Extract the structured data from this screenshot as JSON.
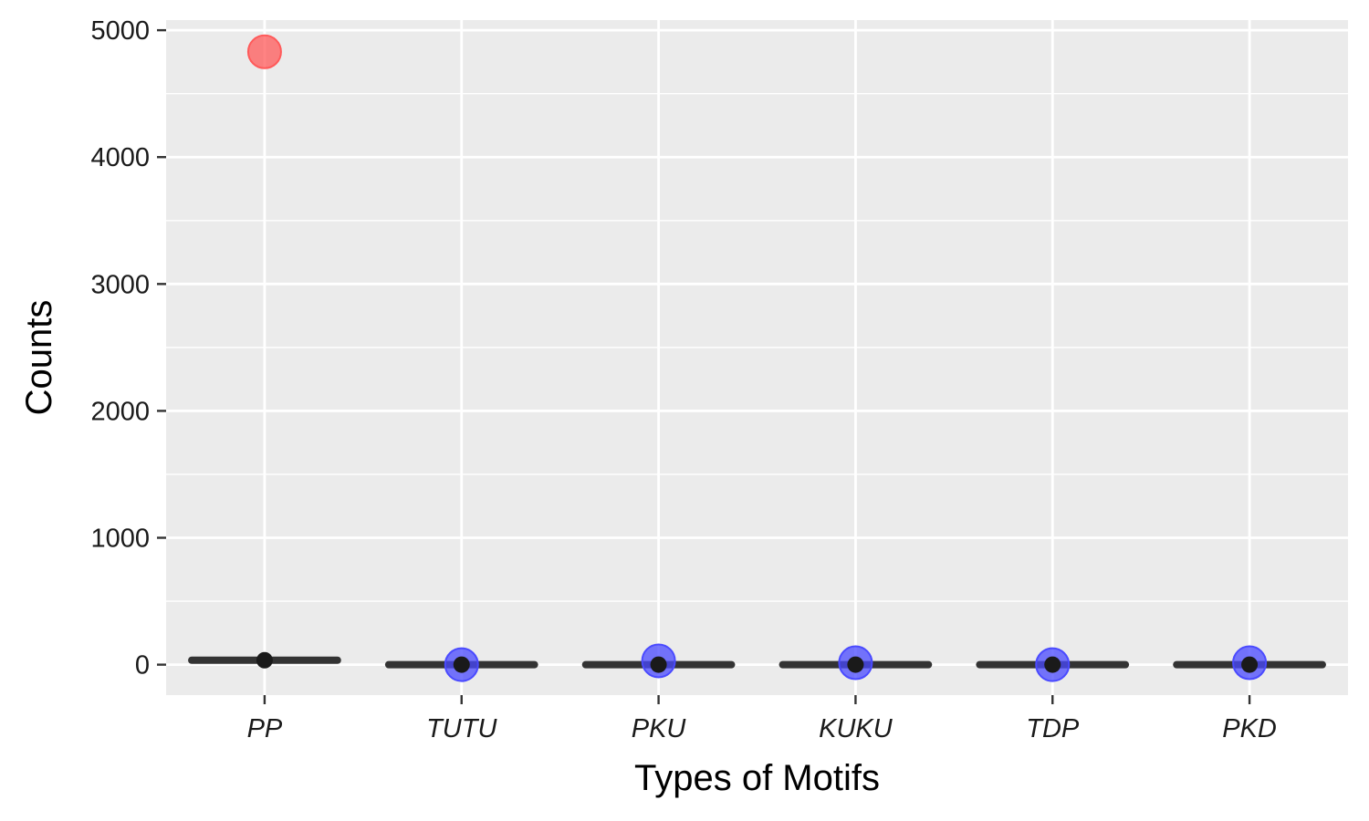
{
  "chart_data": {
    "type": "box",
    "title": "",
    "xlabel": "Types of Motifs",
    "ylabel": "Counts",
    "categories": [
      "PP",
      "TUTU",
      "PKU",
      "KUKU",
      "TDP",
      "PKD"
    ],
    "ylim": [
      -240,
      5080
    ],
    "yticks": [
      0,
      1000,
      2000,
      3000,
      4000,
      5000
    ],
    "ytick_labels": [
      "0",
      "1000",
      "2000",
      "3000",
      "4000",
      "5000"
    ],
    "grid": true,
    "legend": "none",
    "boxes": [
      {
        "category": "PP",
        "median": 35,
        "q1": 30,
        "q3": 40
      },
      {
        "category": "TUTU",
        "median": 0,
        "q1": 0,
        "q3": 0
      },
      {
        "category": "PKU",
        "median": 0,
        "q1": 0,
        "q3": 0
      },
      {
        "category": "KUKU",
        "median": 0,
        "q1": 0,
        "q3": 0
      },
      {
        "category": "TDP",
        "median": 0,
        "q1": 0,
        "q3": 0
      },
      {
        "category": "PKD",
        "median": 0,
        "q1": 0,
        "q3": 0
      }
    ],
    "points": [
      {
        "category": "PP",
        "y": 4830,
        "group": "red"
      },
      {
        "category": "TUTU",
        "y": 0,
        "group": "blue"
      },
      {
        "category": "PKU",
        "y": 30,
        "group": "blue"
      },
      {
        "category": "KUKU",
        "y": 15,
        "group": "blue"
      },
      {
        "category": "TDP",
        "y": 0,
        "group": "blue"
      },
      {
        "category": "PKD",
        "y": 15,
        "group": "blue"
      }
    ],
    "mean_points": [
      {
        "category": "PP",
        "y": 35
      },
      {
        "category": "TUTU",
        "y": 0
      },
      {
        "category": "PKU",
        "y": 0
      },
      {
        "category": "KUKU",
        "y": 0
      },
      {
        "category": "TDP",
        "y": 0
      },
      {
        "category": "PKD",
        "y": 0
      }
    ],
    "colors": {
      "panel_background": "#ebebeb",
      "grid_line": "#ffffff",
      "box_line": "#333333",
      "red_point": "#ff5a5a",
      "blue_point": "#4a4aff",
      "mean_point": "#1a1a1a"
    }
  }
}
